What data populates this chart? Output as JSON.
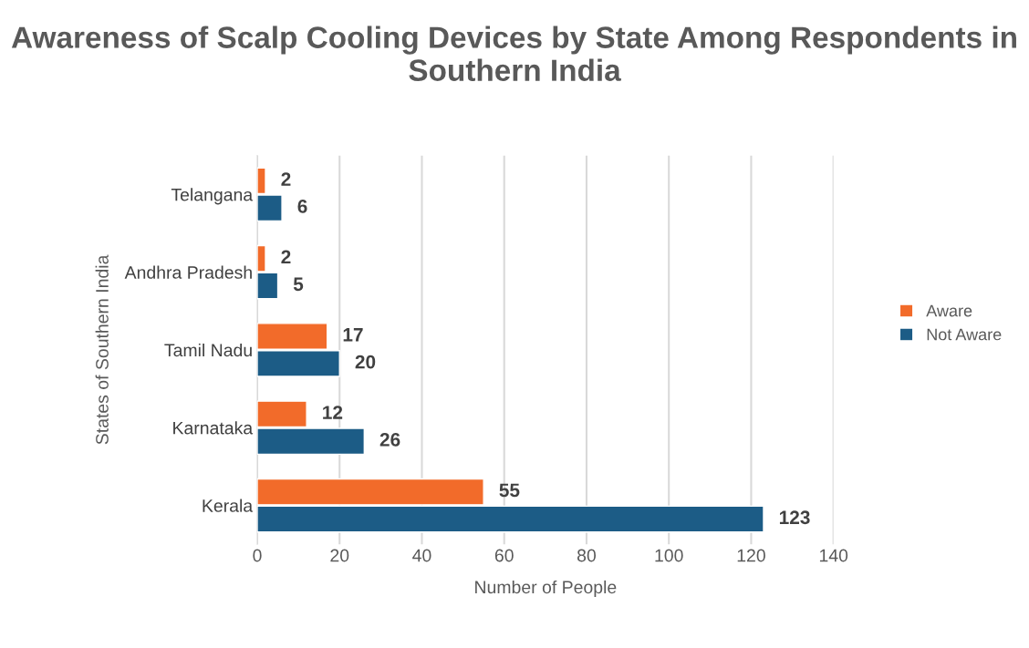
{
  "chart_data": {
    "type": "bar",
    "orientation": "horizontal",
    "title": "Awareness of Scalp Cooling Devices by State Among Respondents in Southern India",
    "xlabel": "Number of People",
    "ylabel": "States of Southern India",
    "categories": [
      "Telangana",
      "Andhra Pradesh",
      "Tamil Nadu",
      "Karnataka",
      "Kerala"
    ],
    "series": [
      {
        "name": "Aware",
        "color": "#f26b2a",
        "values": [
          2,
          2,
          17,
          12,
          55
        ]
      },
      {
        "name": "Not Aware",
        "color": "#1c5c86",
        "values": [
          6,
          5,
          20,
          26,
          123
        ]
      }
    ],
    "xlim": [
      0,
      140
    ],
    "xticks": [
      0,
      20,
      40,
      60,
      80,
      100,
      120,
      140
    ],
    "grid": "x",
    "legend": "right",
    "data_labels": true
  }
}
